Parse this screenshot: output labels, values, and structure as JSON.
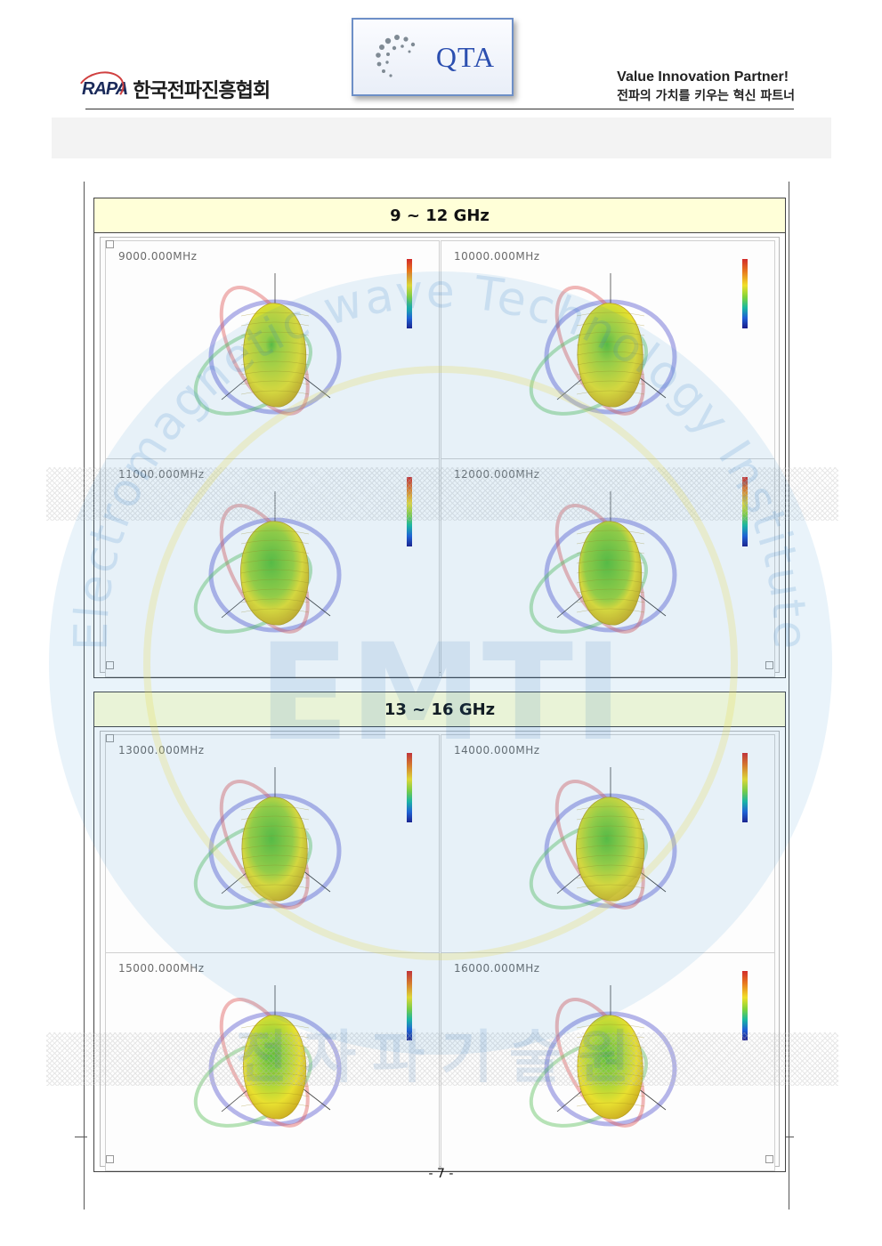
{
  "header": {
    "rapa_mark": "RAPA",
    "rapa_name": "한국전파진흥협회",
    "qta_logo": "QTA",
    "tagline_en": "Value Innovation Partner!",
    "tagline_ko": "전파의 가치를 키우는 혁신 파트너"
  },
  "sections": [
    {
      "title": "9 ~ 12 GHz",
      "panels": [
        {
          "freq": "9000.000MHz"
        },
        {
          "freq": "10000.000MHz"
        },
        {
          "freq": "11000.000MHz"
        },
        {
          "freq": "12000.000MHz"
        }
      ]
    },
    {
      "title": "13 ~ 16 GHz",
      "panels": [
        {
          "freq": "13000.000MHz"
        },
        {
          "freq": "14000.000MHz"
        },
        {
          "freq": "15000.000MHz"
        },
        {
          "freq": "16000.000MHz"
        }
      ]
    }
  ],
  "watermark": {
    "arc_text": "Electromagnetic wave Technology Institute",
    "logo_text": "EMTI",
    "korean_text": "전자파기술원"
  },
  "page_number": "- 7 -",
  "colors": {
    "section_header_bg": "#ffffd8",
    "qta_blue": "#2c4fb0",
    "pattern_yellow": "#e8e030",
    "pattern_green": "#5cc038",
    "watermark_blue": "#3a8fd0"
  }
}
